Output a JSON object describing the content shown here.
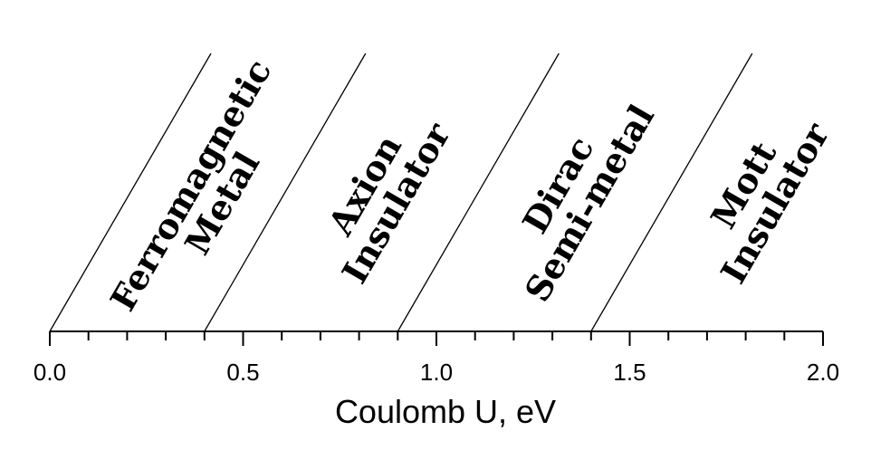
{
  "chart_data": {
    "type": "phase-diagram",
    "title": "",
    "xlabel": "Coulomb U, eV",
    "ylabel": "",
    "xlim": [
      0.0,
      2.0
    ],
    "major_ticks": [
      0.0,
      0.5,
      1.0,
      1.5,
      2.0
    ],
    "tick_labels": [
      "0.0",
      "0.5",
      "1.0",
      "1.5",
      "2.0"
    ],
    "minor_tick_step": 0.1,
    "boundaries": [
      0.0,
      0.4,
      0.9,
      1.4
    ],
    "phases": [
      {
        "lines": [
          "Ferromagnetic",
          "Metal"
        ],
        "range": [
          0.0,
          0.4
        ]
      },
      {
        "lines": [
          "Axion",
          "Insulator"
        ],
        "range": [
          0.4,
          0.9
        ]
      },
      {
        "lines": [
          "Dirac",
          "Semi-metal"
        ],
        "range": [
          0.9,
          1.4
        ]
      },
      {
        "lines": [
          "Mott",
          "Insulator"
        ],
        "range": [
          1.4,
          2.0
        ]
      }
    ],
    "grid": false,
    "legend": "none"
  }
}
